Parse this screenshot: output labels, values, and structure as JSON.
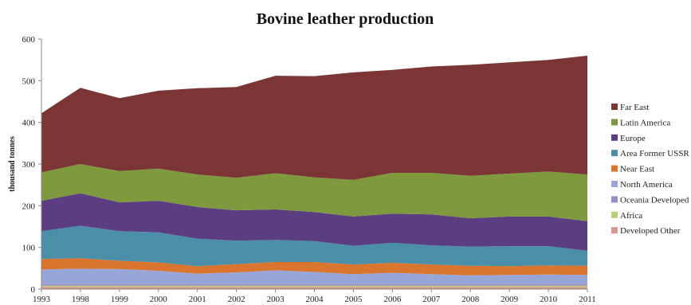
{
  "chart_data": {
    "type": "area",
    "stacked": true,
    "title": "Bovine leather production",
    "ylabel": "thousand tonnes",
    "xlabel": "",
    "ylim": [
      0,
      600
    ],
    "yticks": [
      0,
      100,
      200,
      300,
      400,
      500,
      600
    ],
    "categories": [
      "1993",
      "1998",
      "1999",
      "2000",
      "2001",
      "2002",
      "2003",
      "2004",
      "2005",
      "2006",
      "2007",
      "2008",
      "2009",
      "2010",
      "2011"
    ],
    "legend_position": "right",
    "grid": false,
    "series": [
      {
        "name": "Developed Other",
        "color": "#d9968c",
        "values": [
          5,
          5,
          5,
          5,
          5,
          5,
          5,
          5,
          5,
          5,
          5,
          5,
          5,
          5,
          5
        ]
      },
      {
        "name": "Africa",
        "color": "#b7d07a",
        "values": [
          3,
          3,
          3,
          3,
          3,
          3,
          3,
          3,
          3,
          3,
          3,
          3,
          3,
          3,
          3
        ]
      },
      {
        "name": "Oceania Developed",
        "color": "#9b8bc6",
        "values": [
          4,
          4,
          4,
          4,
          4,
          4,
          4,
          4,
          4,
          4,
          4,
          4,
          4,
          4,
          4
        ]
      },
      {
        "name": "North America",
        "color": "#97a6d6",
        "values": [
          35,
          37,
          36,
          32,
          25,
          28,
          33,
          29,
          24,
          27,
          24,
          21,
          22,
          23,
          22
        ]
      },
      {
        "name": "Near East",
        "color": "#d9752e",
        "values": [
          25,
          25,
          20,
          20,
          18,
          20,
          20,
          24,
          23,
          24,
          23,
          23,
          21,
          22,
          22
        ]
      },
      {
        "name": "Area Former USSR",
        "color": "#4b8ea8",
        "values": [
          67,
          78,
          71,
          72,
          66,
          56,
          53,
          50,
          45,
          48,
          46,
          46,
          48,
          46,
          36
        ]
      },
      {
        "name": "Europe",
        "color": "#5b3d82",
        "values": [
          73,
          78,
          69,
          76,
          76,
          73,
          73,
          70,
          70,
          70,
          74,
          68,
          71,
          71,
          71
        ]
      },
      {
        "name": "Latin America",
        "color": "#7f9a3e",
        "values": [
          68,
          70,
          75,
          77,
          78,
          78,
          87,
          83,
          88,
          98,
          100,
          102,
          103,
          108,
          112
        ]
      },
      {
        "name": "Far East",
        "color": "#7b3535",
        "values": [
          142,
          183,
          175,
          187,
          207,
          218,
          234,
          243,
          258,
          247,
          255,
          266,
          267,
          268,
          285
        ]
      }
    ]
  }
}
